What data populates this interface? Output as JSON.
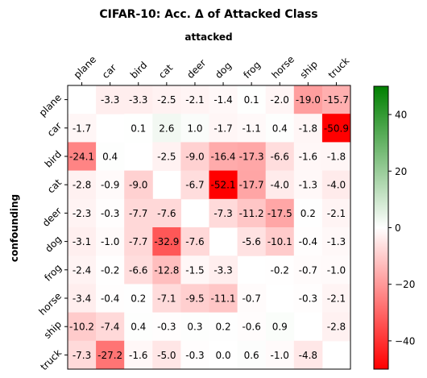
{
  "chart_data": {
    "type": "heatmap",
    "title": "CIFAR-10: Acc. Δ of Attacked Class",
    "xlabel": "attacked",
    "ylabel": "confounding",
    "columns": [
      "plane",
      "car",
      "bird",
      "cat",
      "deer",
      "dog",
      "frog",
      "horse",
      "ship",
      "truck"
    ],
    "rows": [
      "plane",
      "car",
      "bird",
      "cat",
      "deer",
      "dog",
      "frog",
      "horse",
      "ship",
      "truck"
    ],
    "values": [
      [
        null,
        -3.3,
        -3.3,
        -2.5,
        -2.1,
        -1.4,
        0.1,
        -2.0,
        -19.0,
        -15.7
      ],
      [
        -1.7,
        null,
        0.1,
        2.6,
        1.0,
        -1.7,
        -1.1,
        0.4,
        -1.8,
        -50.9
      ],
      [
        -24.1,
        0.4,
        null,
        -2.5,
        -9.0,
        -16.4,
        -17.3,
        -6.6,
        -1.6,
        -1.8
      ],
      [
        -2.8,
        -0.9,
        -9.0,
        null,
        -6.7,
        -52.1,
        -17.7,
        -4.0,
        -1.3,
        -4.0
      ],
      [
        -2.3,
        -0.3,
        -7.7,
        -7.6,
        null,
        -7.3,
        -11.2,
        -17.5,
        0.2,
        -2.1
      ],
      [
        -3.1,
        -1.0,
        -7.7,
        -32.9,
        -7.6,
        null,
        -5.6,
        -10.1,
        -0.4,
        -1.3
      ],
      [
        -2.4,
        -0.2,
        -6.6,
        -12.8,
        -1.5,
        -3.3,
        null,
        -0.2,
        -0.7,
        -1.0
      ],
      [
        -3.4,
        -0.4,
        0.2,
        -7.1,
        -9.5,
        -11.1,
        -0.7,
        null,
        -0.3,
        -2.1
      ],
      [
        -10.2,
        -7.4,
        0.4,
        -0.3,
        0.3,
        0.2,
        -0.6,
        0.9,
        null,
        -2.8
      ],
      [
        -7.3,
        -27.2,
        -1.6,
        -5.0,
        -0.3,
        0.0,
        0.6,
        -1.0,
        -4.8,
        null
      ]
    ],
    "color_range": [
      -50,
      50
    ],
    "colorbar_ticks": [
      40,
      20,
      0,
      -20,
      -40
    ],
    "colormap": {
      "negative": "#ff0000",
      "zero": "#ffffff",
      "positive": "#008000"
    }
  }
}
